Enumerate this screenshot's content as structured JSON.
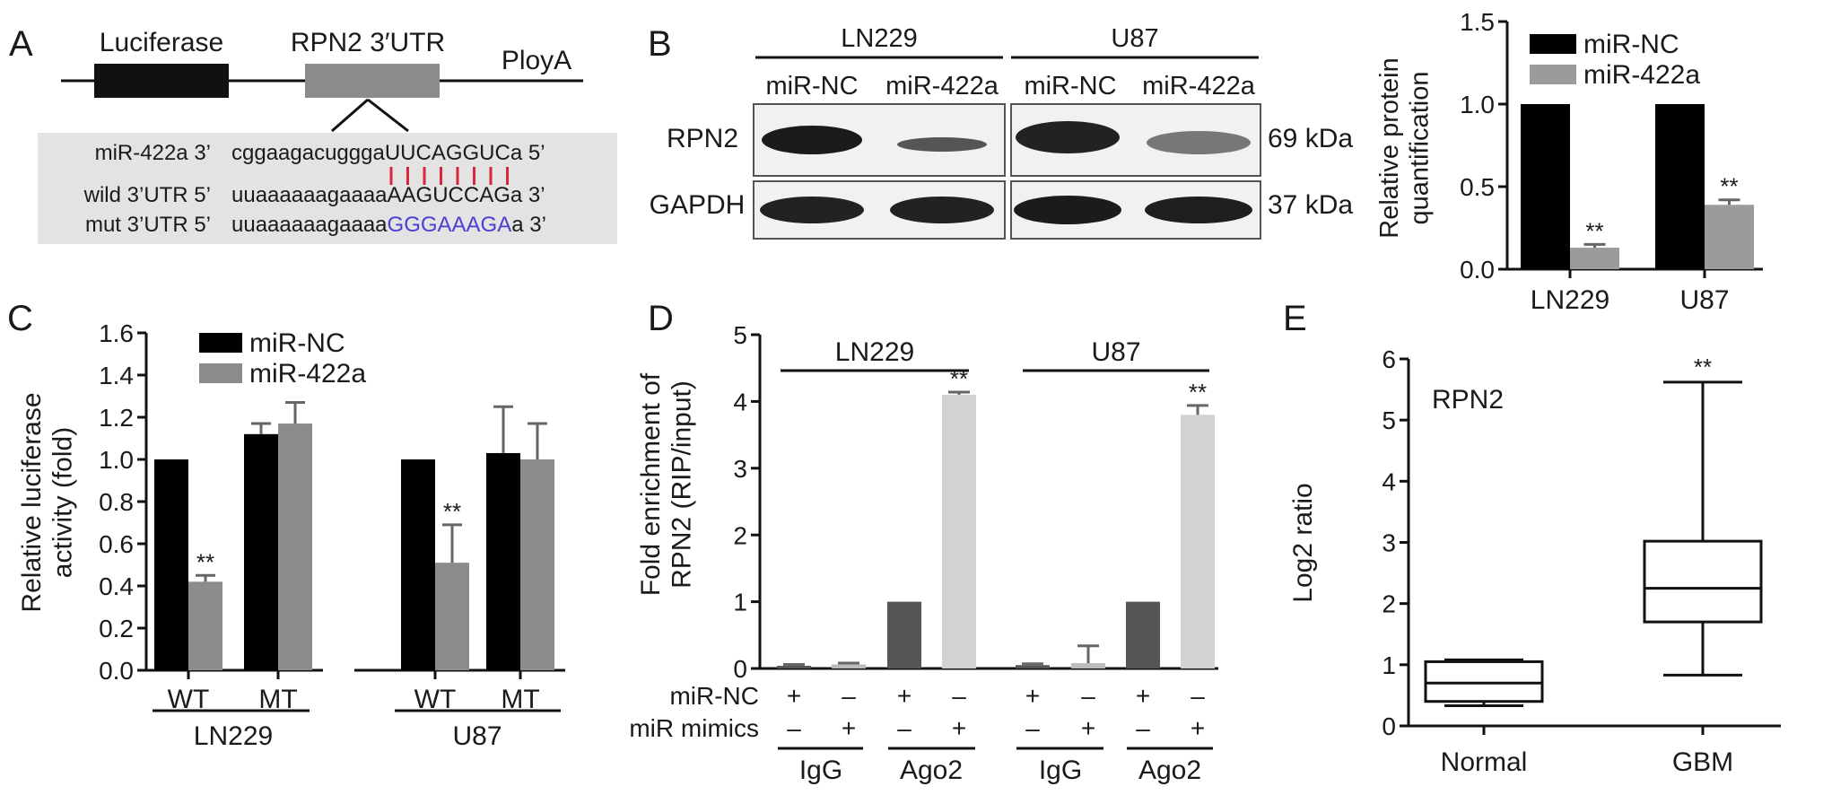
{
  "panels": {
    "A": "A",
    "B": "B",
    "C": "C",
    "D": "D",
    "E": "E"
  },
  "panelA": {
    "luciferase_label": "Luciferase",
    "utr_label": "RPN2 3′UTR",
    "polya_label": "PloyA",
    "rows": [
      {
        "label": "miR-422a 3’",
        "seq_prefix": "cggaagacuggga",
        "seq_highlight": "UUCAGGUC",
        "seq_suffix": "a 5’"
      },
      {
        "label": "wild 3’UTR 5’",
        "seq_prefix": "uuaaaaaagaaaa",
        "seq_highlight": "AAGUCCAG",
        "seq_suffix": "a 3’"
      },
      {
        "label": "mut 3’UTR 5’",
        "seq_prefix": "uuaaaaaagaaaa",
        "seq_highlight": "GGGAAAGA",
        "seq_suffix": "a 3’"
      }
    ],
    "colors": {
      "box_dark": "#111111",
      "box_gray": "#8c8c8c",
      "pairing": "#d9263a",
      "mutation": "#4a3fd0",
      "shade": "#e3e3e3"
    }
  },
  "panelB": {
    "cell_lines": [
      "LN229",
      "U87"
    ],
    "lanes": [
      "miR-NC",
      "miR-422a",
      "miR-NC",
      "miR-422a"
    ],
    "blots": [
      {
        "protein": "RPN2",
        "size": "69 kDa"
      },
      {
        "protein": "GAPDH",
        "size": "37 kDa"
      }
    ]
  },
  "chart_data": [
    {
      "panel": "B",
      "type": "bar",
      "categories": [
        "LN229",
        "U87"
      ],
      "series": [
        {
          "name": "miR-NC",
          "values": [
            1.0,
            1.0
          ],
          "errors": [
            0,
            0
          ],
          "color": "#000000"
        },
        {
          "name": "miR-422a",
          "values": [
            0.13,
            0.39
          ],
          "errors": [
            0.02,
            0.03
          ],
          "color": "#9b9b9b"
        }
      ],
      "ylabel": "Relative protein quantification",
      "ylabel_lines": [
        "Relative protein",
        "quantification"
      ],
      "ylim": [
        0,
        1.5
      ],
      "yticks": [
        "0.0",
        "0.5",
        "1.0",
        "1.5"
      ],
      "significance": [
        "**",
        "**"
      ],
      "legend": "top-right"
    },
    {
      "panel": "C",
      "type": "bar",
      "groups": [
        {
          "name": "LN229",
          "categories": [
            "WT",
            "MT"
          ]
        },
        {
          "name": "U87",
          "categories": [
            "WT",
            "MT"
          ]
        }
      ],
      "series": [
        {
          "name": "miR-NC",
          "values": [
            1.0,
            1.12,
            1.0,
            1.03
          ],
          "errors": [
            0,
            0.05,
            0,
            0.22
          ],
          "color": "#000000"
        },
        {
          "name": "miR-422a",
          "values": [
            0.42,
            1.17,
            0.51,
            1.0
          ],
          "errors": [
            0.03,
            0.1,
            0.18,
            0.17
          ],
          "color": "#8c8c8c"
        }
      ],
      "ylabel": "Relative luciferase activity (fold)",
      "ylabel_lines": [
        "Relative luciferase",
        "activity (fold)"
      ],
      "ylim": [
        0,
        1.6
      ],
      "yticks": [
        "0.0",
        "0.2",
        "0.4",
        "0.6",
        "0.8",
        "1.0",
        "1.2",
        "1.4",
        "1.6"
      ],
      "significance": [
        "**",
        "",
        "**",
        ""
      ],
      "legend": "top"
    },
    {
      "panel": "D",
      "type": "bar",
      "groups": [
        {
          "name": "LN229",
          "conditions": [
            "IgG",
            "IgG",
            "Ago2",
            "Ago2"
          ]
        },
        {
          "name": "U87",
          "conditions": [
            "IgG",
            "IgG",
            "Ago2",
            "Ago2"
          ]
        }
      ],
      "values": [
        0.04,
        0.06,
        1.0,
        4.1,
        0.05,
        0.08,
        1.0,
        3.8
      ],
      "errors": [
        0.02,
        0.02,
        0,
        0.04,
        0.02,
        0.26,
        0,
        0.14
      ],
      "colors": [
        "#555555",
        "#bbbbbb",
        "#555555",
        "#d2d2d2",
        "#555555",
        "#bbbbbb",
        "#555555",
        "#d2d2d2"
      ],
      "ylabel": "Fold enrichment of RPN2 (RIP/input)",
      "ylabel_lines": [
        "Fold enrichment of",
        "RPN2 (RIP/input)"
      ],
      "ylim": [
        0,
        5
      ],
      "yticks": [
        "0",
        "1",
        "2",
        "3",
        "4",
        "5"
      ],
      "significance": [
        "",
        "",
        "",
        "**",
        "",
        "",
        "",
        "**"
      ],
      "rows": [
        {
          "label": "miR-NC",
          "signs": [
            "+",
            "–",
            "+",
            "–",
            "+",
            "–",
            "+",
            "–"
          ]
        },
        {
          "label": "miR mimics",
          "signs": [
            "–",
            "+",
            "–",
            "+",
            "–",
            "+",
            "–",
            "+"
          ]
        }
      ],
      "condition_labels": [
        "IgG",
        "Ago2",
        "IgG",
        "Ago2"
      ]
    },
    {
      "panel": "E",
      "type": "box",
      "title": "RPN2",
      "categories": [
        "Normal",
        "GBM"
      ],
      "boxes": [
        {
          "min": 0.33,
          "q1": 0.4,
          "median": 0.7,
          "q3": 1.05,
          "max": 1.08
        },
        {
          "min": 0.83,
          "q1": 1.7,
          "median": 2.25,
          "q3": 3.02,
          "max": 5.62
        }
      ],
      "ylabel": "Log2 ratio",
      "ylim": [
        0,
        6
      ],
      "yticks": [
        "0",
        "1",
        "2",
        "3",
        "4",
        "5",
        "6"
      ],
      "significance": [
        "",
        "**"
      ]
    }
  ]
}
